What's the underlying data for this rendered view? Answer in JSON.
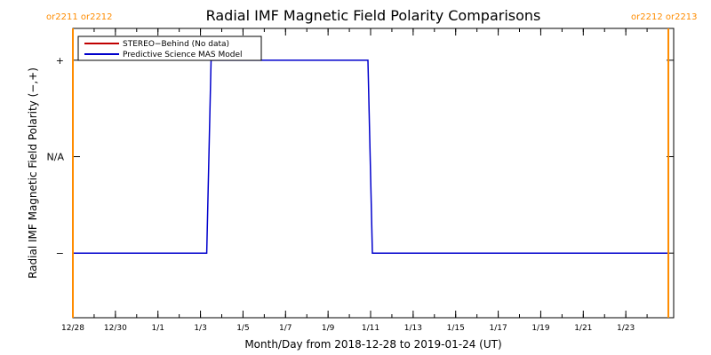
{
  "chart_data": {
    "type": "line",
    "title": "Radial IMF Magnetic Field Polarity Comparisons",
    "xlabel": "Month/Day from 2018-12-28 to 2019-01-24 (UT)",
    "ylabel": "Radial IMF Magnetic Field Polarity (−,+)",
    "x_start": "2018-12-28",
    "x_end": "2019-01-24",
    "xlim": [
      "2018-12-28T00:00",
      "2019-01-25T06:00"
    ],
    "x_ticks": [
      {
        "date": "2018-12-28",
        "label": "12/28"
      },
      {
        "date": "2018-12-30",
        "label": "12/30"
      },
      {
        "date": "2019-01-01",
        "label": "1/1"
      },
      {
        "date": "2019-01-03",
        "label": "1/3"
      },
      {
        "date": "2019-01-05",
        "label": "1/5"
      },
      {
        "date": "2019-01-07",
        "label": "1/7"
      },
      {
        "date": "2019-01-09",
        "label": "1/9"
      },
      {
        "date": "2019-01-11",
        "label": "1/11"
      },
      {
        "date": "2019-01-13",
        "label": "1/13"
      },
      {
        "date": "2019-01-15",
        "label": "1/15"
      },
      {
        "date": "2019-01-17",
        "label": "1/17"
      },
      {
        "date": "2019-01-19",
        "label": "1/19"
      },
      {
        "date": "2019-01-21",
        "label": "1/21"
      },
      {
        "date": "2019-01-23",
        "label": "1/23"
      }
    ],
    "y_categories": [
      "−",
      "N/A",
      "+"
    ],
    "ylim": [
      -1.67,
      1.33
    ],
    "grid": false,
    "legend_position": "top-left",
    "series": [
      {
        "name": "STEREO−Behind (No data)",
        "color": "#c00000",
        "points": []
      },
      {
        "name": "Predictive Science MAS Model",
        "color": "#0000cc",
        "points": [
          {
            "x": "2018-12-28T00:00",
            "y": -1
          },
          {
            "x": "2019-01-03T07:00",
            "y": -1
          },
          {
            "x": "2019-01-03T12:00",
            "y": 1
          },
          {
            "x": "2019-01-10T21:00",
            "y": 1
          },
          {
            "x": "2019-01-11T02:00",
            "y": -1
          },
          {
            "x": "2019-01-24T23:00",
            "y": -1
          }
        ]
      }
    ],
    "carrington_markers": [
      {
        "x": "2018-12-28T00:00",
        "label": "or2211 or2212"
      },
      {
        "x": "2019-01-25T00:00",
        "label": "or2212 or2213"
      }
    ],
    "marker_color": "#ff8c00"
  }
}
